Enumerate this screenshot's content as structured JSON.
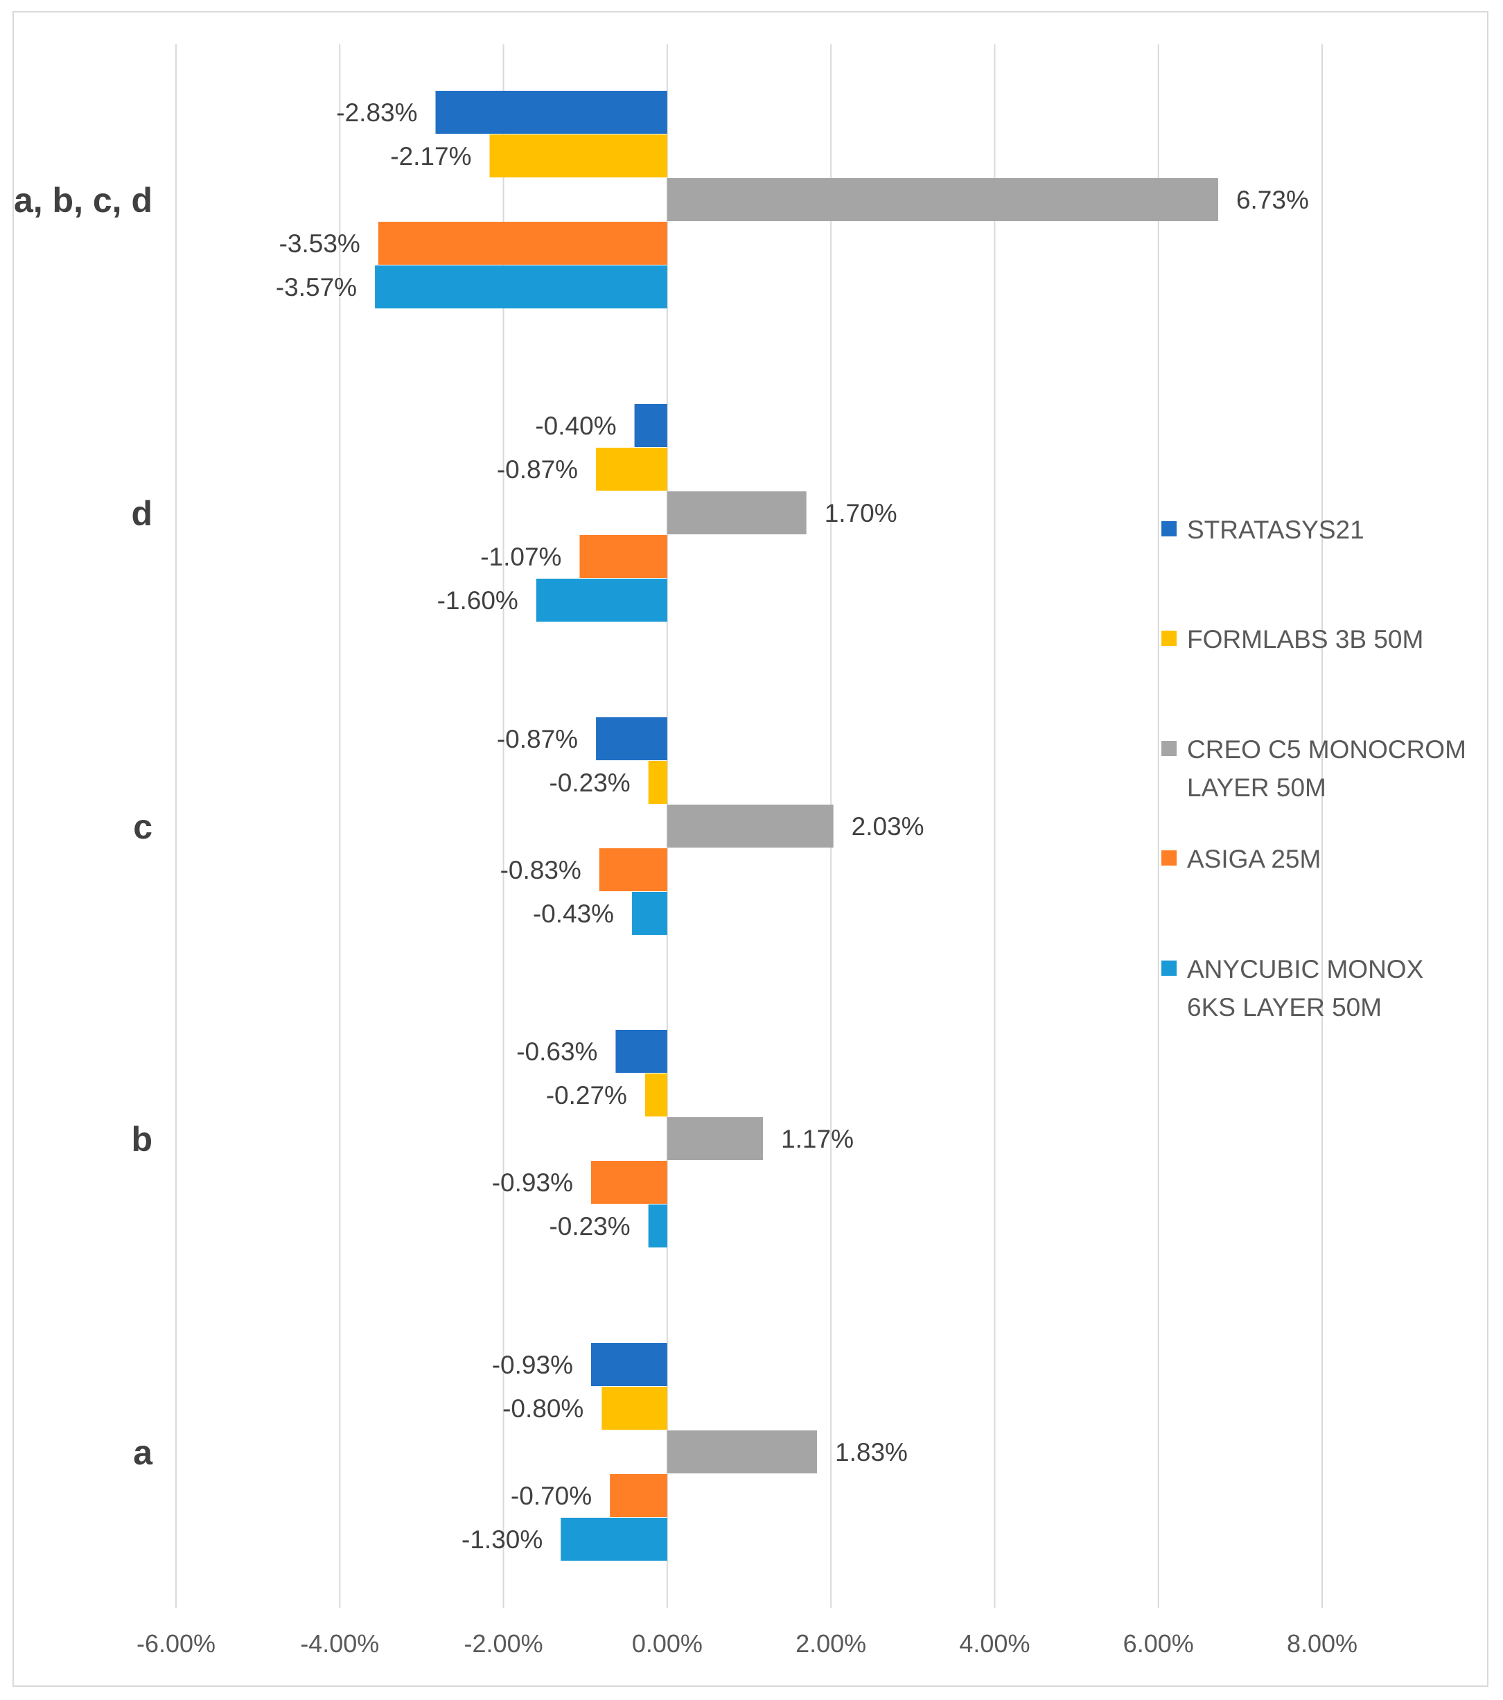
{
  "chart_data": {
    "type": "bar",
    "orientation": "horizontal",
    "categories": [
      "a, b, c, d",
      "d",
      "c",
      "b",
      "a"
    ],
    "series": [
      {
        "name": "STRATASYS21",
        "color": "#1F6FC5",
        "values": [
          -2.83,
          -0.4,
          -0.87,
          -0.63,
          -0.93
        ],
        "labels": [
          "-2.83%",
          "-0.40%",
          "-0.87%",
          "-0.63%",
          "-0.93%"
        ]
      },
      {
        "name": "FORMLABS 3B 50M",
        "color": "#FFC000",
        "values": [
          -2.17,
          -0.87,
          -0.23,
          -0.27,
          -0.8
        ],
        "labels": [
          "-2.17%",
          "-0.87%",
          "-0.23%",
          "-0.27%",
          "-0.80%"
        ]
      },
      {
        "name": "CREO C5 MONOCROM LAYER 50M",
        "color": "#A5A5A5",
        "values": [
          6.73,
          1.7,
          2.03,
          1.17,
          1.83
        ],
        "labels": [
          "6.73%",
          "1.70%",
          "2.03%",
          "1.17%",
          "1.83%"
        ]
      },
      {
        "name": "ASIGA 25M",
        "color": "#FF7F27",
        "values": [
          -3.53,
          -1.07,
          -0.83,
          -0.93,
          -0.7
        ],
        "labels": [
          "-3.53%",
          "-1.07%",
          "-0.83%",
          "-0.93%",
          "-0.70%"
        ]
      },
      {
        "name": "ANYCUBIC MONOX 6KS LAYER 50M",
        "color": "#1A9AD6",
        "values": [
          -3.57,
          -1.6,
          -0.43,
          -0.23,
          -1.3
        ],
        "labels": [
          "-3.57%",
          "-1.60%",
          "-0.43%",
          "-0.23%",
          "-1.30%"
        ]
      }
    ],
    "legend_lines": [
      [
        "STRATASYS21"
      ],
      [
        "FORMLABS 3B 50M"
      ],
      [
        "CREO C5 MONOCROM",
        "LAYER 50M"
      ],
      [
        "ASIGA 25M"
      ],
      [
        "ANYCUBIC MONOX",
        "6KS LAYER 50M"
      ]
    ],
    "x_ticks": [
      -6,
      -4,
      -2,
      0,
      2,
      4,
      6,
      8
    ],
    "x_tick_labels": [
      "-6.00%",
      "-4.00%",
      "-2.00%",
      "0.00%",
      "2.00%",
      "4.00%",
      "6.00%",
      "8.00%"
    ],
    "xlim": [
      -6,
      8
    ],
    "title": "",
    "xlabel": "",
    "ylabel": "",
    "grid": true,
    "legend_position": "right"
  }
}
